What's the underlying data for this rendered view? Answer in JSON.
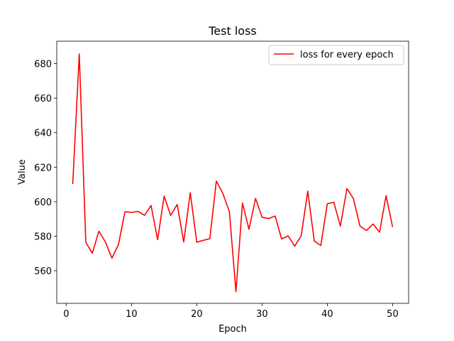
{
  "chart_data": {
    "type": "line",
    "title": "Test loss",
    "xlabel": "Epoch",
    "ylabel": "Value",
    "xlim": [
      -1.45,
      52.45
    ],
    "ylim": [
      541.1,
      693.0
    ],
    "x_ticks": [
      0,
      10,
      20,
      30,
      40,
      50
    ],
    "y_ticks": [
      560,
      580,
      600,
      620,
      640,
      660,
      680
    ],
    "grid": false,
    "legend_position": "top-right",
    "series": [
      {
        "name": "loss for every epoch",
        "color": "#ff0000",
        "x": [
          1,
          2,
          3,
          4,
          5,
          6,
          7,
          8,
          9,
          10,
          11,
          12,
          13,
          14,
          15,
          16,
          17,
          18,
          19,
          20,
          21,
          22,
          23,
          24,
          25,
          26,
          27,
          28,
          29,
          30,
          31,
          32,
          33,
          34,
          35,
          36,
          37,
          38,
          39,
          40,
          41,
          42,
          43,
          44,
          45,
          46,
          47,
          48,
          49,
          50
        ],
        "values": [
          610.2,
          685.6,
          576.5,
          570.1,
          582.9,
          576.7,
          567.3,
          575.1,
          594.2,
          593.8,
          594.4,
          592.1,
          597.8,
          578.0,
          603.2,
          592.1,
          598.4,
          576.7,
          605.2,
          576.5,
          577.6,
          578.6,
          612.0,
          604.7,
          594.2,
          547.8,
          599.2,
          584.0,
          601.9,
          591.0,
          590.2,
          591.7,
          578.4,
          580.2,
          574.2,
          580.3,
          606.1,
          577.2,
          574.6,
          598.8,
          599.6,
          585.8,
          607.6,
          601.8,
          585.9,
          583.3,
          587.1,
          582.3,
          603.5,
          585.3
        ]
      }
    ]
  }
}
